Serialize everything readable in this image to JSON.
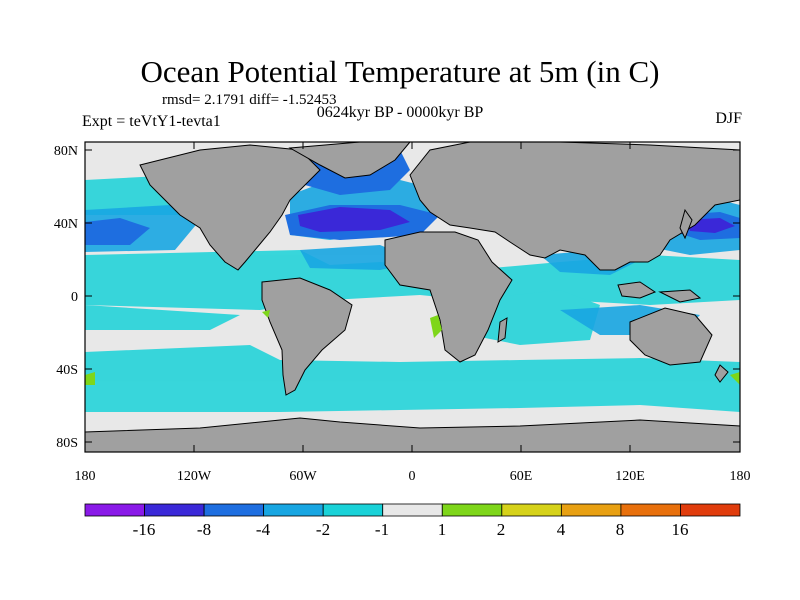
{
  "title": "Ocean Potential Temperature at 5m (in C)",
  "stats": "rmsd= 2.1791 diff= -1.52453",
  "experiment": "Expt = teVtY1-tevta1",
  "period": "0624kyr BP - 0000kyr BP",
  "season": "DJF",
  "lat_ticks": [
    "80N",
    "40N",
    "0",
    "40S",
    "80S"
  ],
  "lon_ticks": [
    "180",
    "120W",
    "60W",
    "0",
    "60E",
    "120E",
    "180"
  ],
  "colorbar": {
    "colors": [
      "#8a1ae8",
      "#3a28d8",
      "#1e6ee0",
      "#18a6e2",
      "#19d2d8",
      "#e8e8e8",
      "#7ed61a",
      "#d6d21a",
      "#e8a012",
      "#e8700c",
      "#e03c0c"
    ],
    "labels": [
      "-16",
      "-8",
      "-4",
      "-2",
      "-1",
      "1",
      "2",
      "4",
      "8",
      "16"
    ]
  },
  "map_colors": {
    "land": "#a0a0a0",
    "coast": "#000000"
  }
}
